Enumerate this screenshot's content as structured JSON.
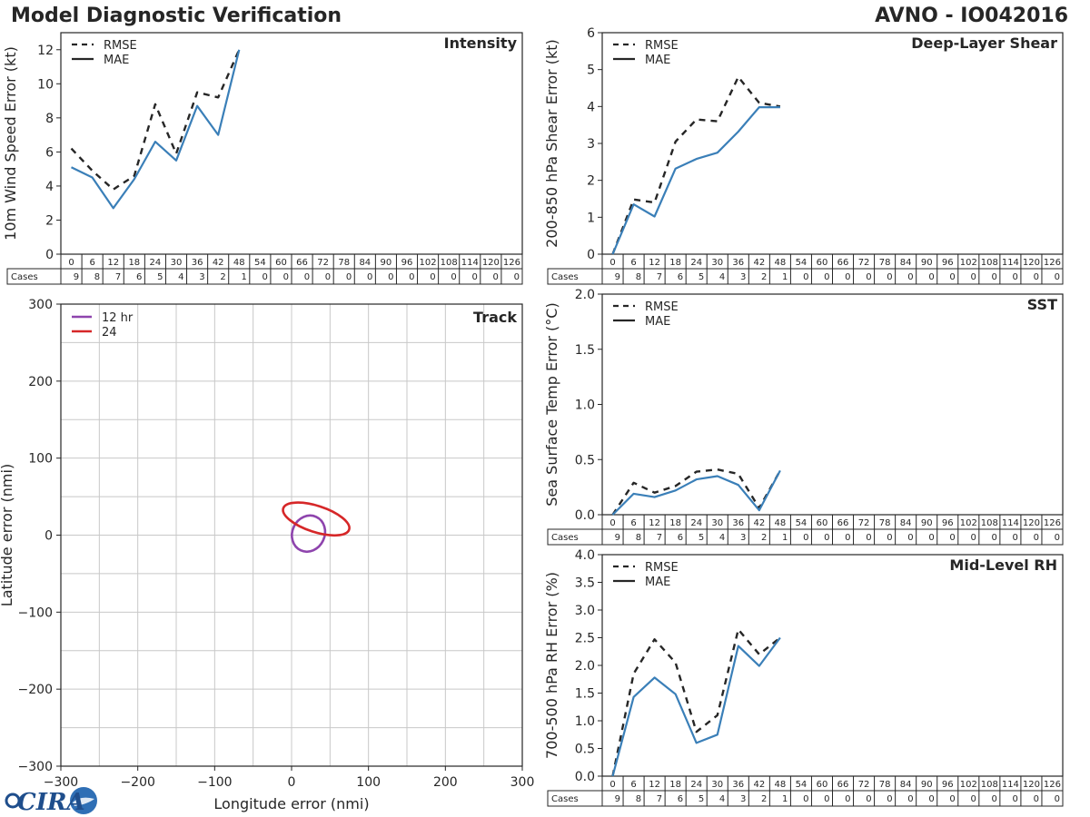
{
  "header": {
    "title": "Model Diagnostic Verification",
    "storm": "AVNO - IO042016"
  },
  "logo": {
    "text": "CIRA"
  },
  "colors": {
    "rmse": "#262626",
    "mae": "#3a7fb8",
    "track_12": "#8e44ad",
    "track_24": "#d62728",
    "grid": "#c8c8c8"
  },
  "table": {
    "hours": [
      "0",
      "6",
      "12",
      "18",
      "24",
      "30",
      "36",
      "42",
      "48",
      "54",
      "60",
      "66",
      "72",
      "78",
      "84",
      "90",
      "96",
      "102",
      "108",
      "114",
      "120",
      "126"
    ],
    "cases_label": "Cases",
    "cases": [
      "9",
      "8",
      "7",
      "6",
      "5",
      "4",
      "3",
      "2",
      "1",
      "0",
      "0",
      "0",
      "0",
      "0",
      "0",
      "0",
      "0",
      "0",
      "0",
      "0",
      "0",
      "0"
    ]
  },
  "chart_data": [
    {
      "id": "intensity",
      "type": "line",
      "title": "Intensity",
      "ylabel": "10m Wind Speed Error (kt)",
      "ylim": [
        0,
        13
      ],
      "yticks": [
        0,
        2,
        4,
        6,
        8,
        10,
        12
      ],
      "ytick_labels": [
        "0",
        "2",
        "4",
        "6",
        "8",
        "10",
        "12"
      ],
      "x": [
        0,
        6,
        12,
        18,
        24,
        30,
        36,
        42,
        48
      ],
      "legend": [
        "RMSE",
        "MAE"
      ],
      "series": [
        {
          "name": "RMSE",
          "values": [
            6.2,
            4.9,
            3.8,
            4.6,
            8.8,
            5.9,
            9.5,
            9.2,
            12.0
          ]
        },
        {
          "name": "MAE",
          "values": [
            5.1,
            4.5,
            2.7,
            4.4,
            6.6,
            5.5,
            8.7,
            7.0,
            12.0
          ]
        }
      ]
    },
    {
      "id": "shear",
      "type": "line",
      "title": "Deep-Layer Shear",
      "ylabel": "200-850 hPa Shear Error (kt)",
      "ylim": [
        0,
        6
      ],
      "yticks": [
        0,
        1,
        2,
        3,
        4,
        5,
        6
      ],
      "ytick_labels": [
        "0",
        "1",
        "2",
        "3",
        "4",
        "5",
        "6"
      ],
      "x": [
        0,
        6,
        12,
        18,
        24,
        30,
        36,
        42,
        48
      ],
      "legend": [
        "RMSE",
        "MAE"
      ],
      "series": [
        {
          "name": "RMSE",
          "values": [
            0.0,
            1.48,
            1.4,
            3.05,
            3.65,
            3.6,
            4.8,
            4.1,
            4.0
          ]
        },
        {
          "name": "MAE",
          "values": [
            0.0,
            1.35,
            1.02,
            2.32,
            2.58,
            2.75,
            3.32,
            3.98,
            3.98
          ]
        }
      ]
    },
    {
      "id": "track",
      "type": "scatter",
      "title": "Track",
      "xlabel": "Longitude error (nmi)",
      "ylabel": "Latitude error (nmi)",
      "xlim": [
        -300,
        300
      ],
      "ylim": [
        -300,
        300
      ],
      "xticks": [
        -300,
        -200,
        -100,
        0,
        100,
        200,
        300
      ],
      "xtick_labels": [
        "−300",
        "−200",
        "−100",
        "0",
        "100",
        "200",
        "300"
      ],
      "yticks": [
        -300,
        -200,
        -100,
        0,
        100,
        200,
        300
      ],
      "ytick_labels": [
        "−300",
        "−200",
        "−100",
        "0",
        "100",
        "200",
        "300"
      ],
      "grid_step": 50,
      "legend": [
        "12 hr",
        "24"
      ],
      "ellipses": [
        {
          "name": "12 hr",
          "center": [
            22,
            2
          ],
          "semi_axes": [
            24,
            21
          ],
          "rotation_deg": 65
        },
        {
          "name": "24",
          "center": [
            32,
            21
          ],
          "semi_axes": [
            45,
            17
          ],
          "rotation_deg": -18
        }
      ]
    },
    {
      "id": "sst",
      "type": "line",
      "title": "SST",
      "ylabel": "Sea Surface Temp Error (°C)",
      "ylim": [
        0,
        2.0
      ],
      "yticks": [
        0,
        0.5,
        1.0,
        1.5,
        2.0
      ],
      "ytick_labels": [
        "0.0",
        "0.5",
        "1.0",
        "1.5",
        "2.0"
      ],
      "x": [
        0,
        6,
        12,
        18,
        24,
        30,
        36,
        42,
        48
      ],
      "legend": [
        "RMSE",
        "MAE"
      ],
      "series": [
        {
          "name": "RMSE",
          "values": [
            0.0,
            0.29,
            0.2,
            0.26,
            0.39,
            0.41,
            0.37,
            0.06,
            0.4
          ]
        },
        {
          "name": "MAE",
          "values": [
            0.0,
            0.19,
            0.16,
            0.22,
            0.32,
            0.35,
            0.27,
            0.04,
            0.4
          ]
        }
      ]
    },
    {
      "id": "rh",
      "type": "line",
      "title": "Mid-Level RH",
      "ylabel": "700-500 hPa RH Error (%)",
      "ylim": [
        0,
        4.0
      ],
      "yticks": [
        0,
        0.5,
        1.0,
        1.5,
        2.0,
        2.5,
        3.0,
        3.5,
        4.0
      ],
      "ytick_labels": [
        "0.0",
        "0.5",
        "1.0",
        "1.5",
        "2.0",
        "2.5",
        "3.0",
        "3.5",
        "4.0"
      ],
      "x": [
        0,
        6,
        12,
        18,
        24,
        30,
        36,
        42,
        48
      ],
      "legend": [
        "RMSE",
        "MAE"
      ],
      "series": [
        {
          "name": "RMSE",
          "values": [
            0.0,
            1.85,
            2.47,
            2.05,
            0.8,
            1.1,
            2.65,
            2.2,
            2.5
          ]
        },
        {
          "name": "MAE",
          "values": [
            0.0,
            1.43,
            1.78,
            1.48,
            0.6,
            0.75,
            2.35,
            1.99,
            2.5
          ]
        }
      ]
    }
  ]
}
